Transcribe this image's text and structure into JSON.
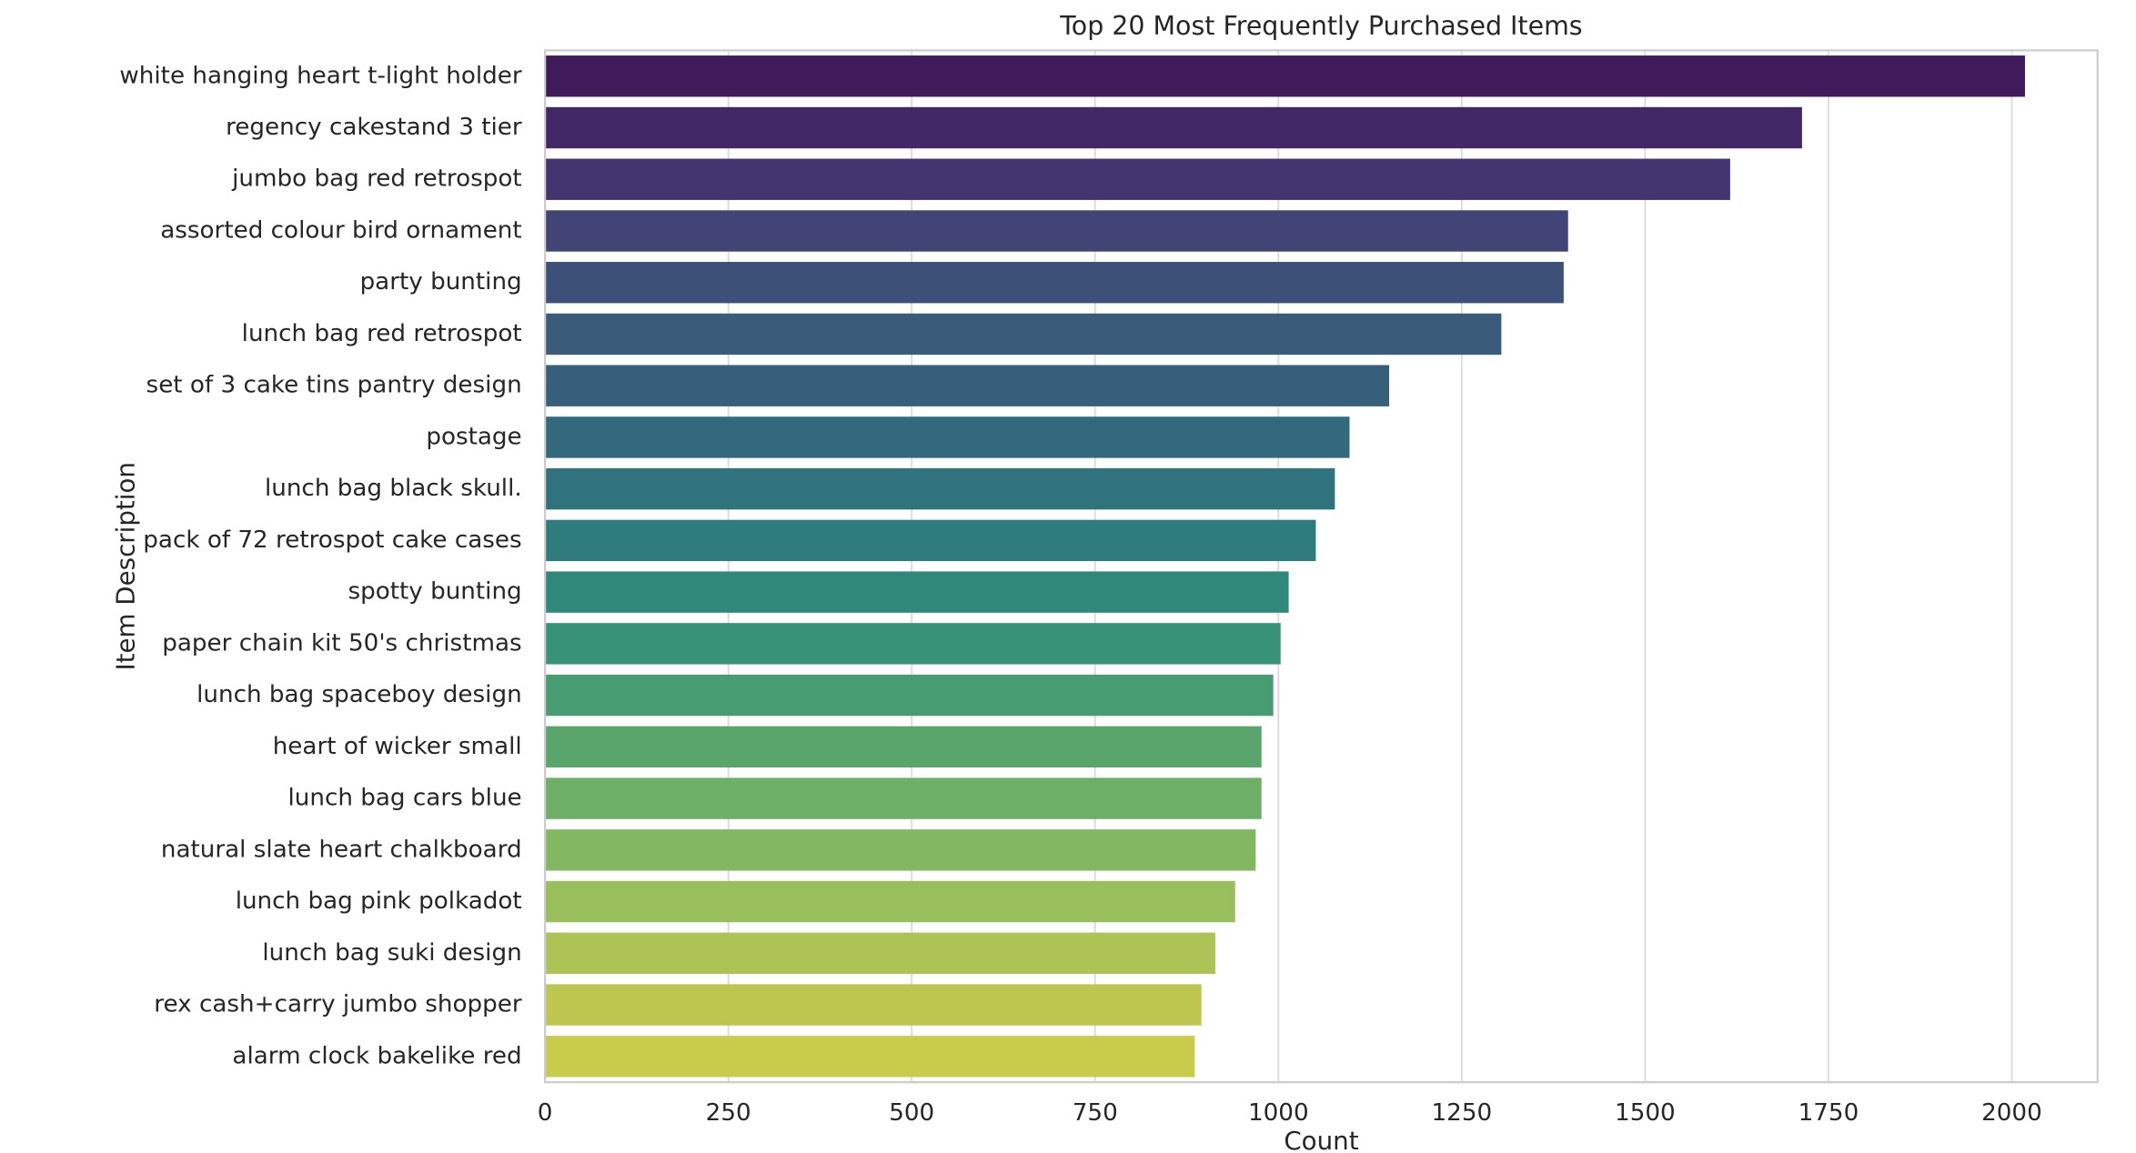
{
  "chart_data": {
    "type": "barh",
    "title": "Top 20 Most Frequently Purchased Items",
    "xlabel": "Count",
    "ylabel": "Item Description",
    "categories": [
      "white hanging heart t-light holder",
      "regency cakestand 3 tier",
      "jumbo bag red retrospot",
      "assorted colour bird ornament",
      "party bunting",
      "lunch bag red retrospot",
      "set of 3 cake tins pantry design",
      "postage",
      "lunch bag  black skull.",
      "pack of 72 retrospot cake cases",
      "spotty bunting",
      "paper chain kit 50's christmas",
      "lunch bag spaceboy design",
      "heart of wicker small",
      "lunch bag cars blue",
      "natural slate heart chalkboard",
      "lunch bag pink polkadot",
      "lunch bag suki design",
      "rex cash+carry jumbo shopper",
      "alarm clock bakelike red"
    ],
    "values": [
      2018,
      1714,
      1616,
      1395,
      1389,
      1304,
      1151,
      1097,
      1077,
      1051,
      1014,
      1003,
      993,
      977,
      977,
      969,
      941,
      914,
      895,
      886
    ],
    "colors": [
      "#3f1b5b",
      "#432868",
      "#443570",
      "#414475",
      "#3d5078",
      "#395c7b",
      "#365f7c",
      "#33697d",
      "#30737d",
      "#2e7d7c",
      "#30887a",
      "#389276",
      "#489c72",
      "#5aa56c",
      "#6daf66",
      "#82b861",
      "#98bf5b",
      "#adc355",
      "#bec64f",
      "#c9cc4a"
    ],
    "xlim": [
      0,
      2117
    ],
    "xticks": [
      0,
      250,
      500,
      750,
      1000,
      1250,
      1500,
      1750,
      2000
    ],
    "grid": true
  }
}
